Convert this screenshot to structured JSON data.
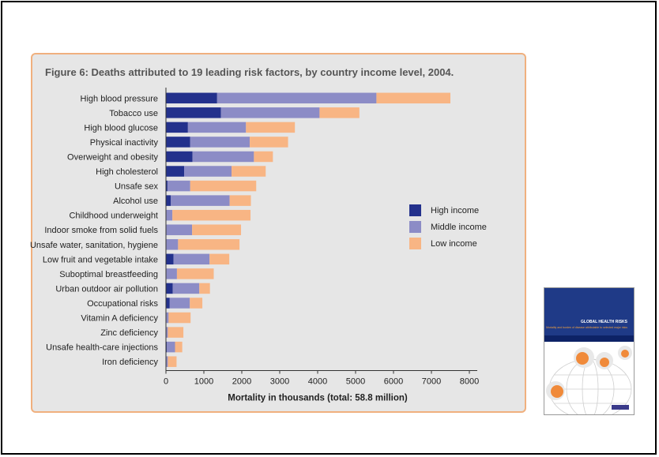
{
  "chart_data": {
    "type": "bar",
    "orientation": "horizontal",
    "stacked": true,
    "title": "Figure 6: Deaths attributed to 19 leading risk factors, by country income level, 2004.",
    "xlabel": "Mortality in thousands (total: 58.8 million)",
    "xlim": [
      0,
      8000
    ],
    "xticks": [
      0,
      1000,
      2000,
      3000,
      4000,
      5000,
      6000,
      7000,
      8000
    ],
    "legend_position": "right",
    "categories": [
      "High blood pressure",
      "Tobacco use",
      "High blood glucose",
      "Physical inactivity",
      "Overweight and obesity",
      "High cholesterol",
      "Unsafe sex",
      "Alcohol use",
      "Childhood underweight",
      "Indoor smoke from solid fuels",
      "Unsafe water, sanitation, hygiene",
      "Low fruit and vegetable intake",
      "Suboptimal breastfeeding",
      "Urban outdoor air pollution",
      "Occupational risks",
      "Vitamin A deficiency",
      "Zinc deficiency",
      "Unsafe health-care injections",
      "Iron deficiency"
    ],
    "series": [
      {
        "name": "High income",
        "color": "#23318c",
        "values": [
          1350,
          1450,
          580,
          640,
          700,
          480,
          40,
          130,
          10,
          10,
          10,
          200,
          10,
          180,
          100,
          10,
          10,
          20,
          10
        ]
      },
      {
        "name": "Middle income",
        "color": "#8c8cc6",
        "values": [
          4200,
          2600,
          1530,
          1570,
          1620,
          1250,
          600,
          1550,
          160,
          680,
          310,
          950,
          280,
          700,
          530,
          60,
          40,
          220,
          40
        ]
      },
      {
        "name": "Low income",
        "color": "#f8b584",
        "values": [
          1950,
          1050,
          1290,
          1010,
          500,
          900,
          1740,
          560,
          2060,
          1290,
          1620,
          520,
          970,
          280,
          330,
          580,
          410,
          190,
          230
        ]
      }
    ]
  },
  "cover": {
    "title": "GLOBAL HEALTH RISKS",
    "subtitle": "Mortality and burden of disease attributable to selected major risks"
  }
}
